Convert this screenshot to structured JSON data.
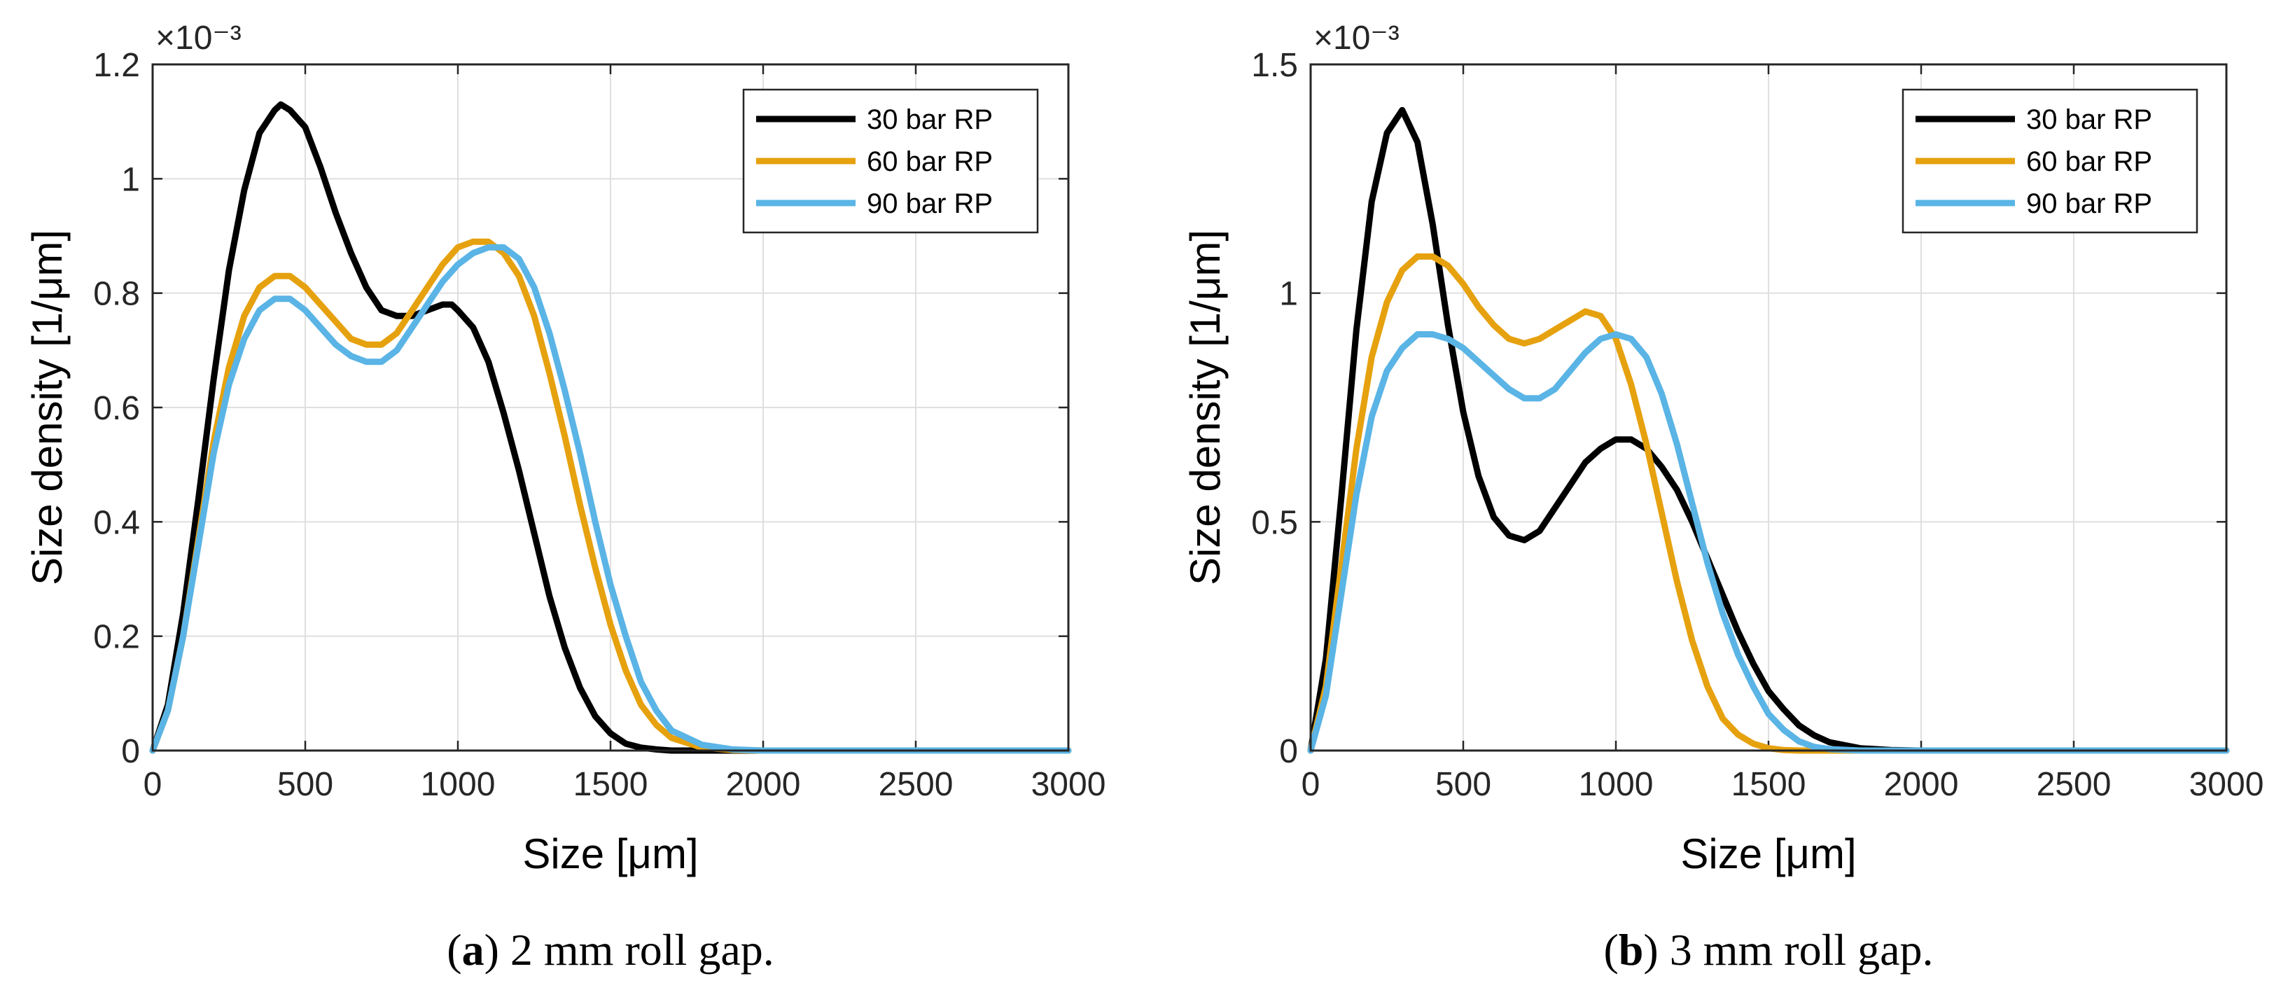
{
  "chart_data": [
    {
      "type": "line",
      "caption_letter": "a",
      "caption_prefix": "(",
      "caption_suffix": ") 2 mm roll gap.",
      "xlabel": "Size [μm]",
      "ylabel": "Size density [1/μm]",
      "exponent_label": "×10⁻³",
      "xlim": [
        0,
        3000
      ],
      "ylim": [
        0,
        1.2
      ],
      "xticks": [
        0,
        500,
        1000,
        1500,
        2000,
        2500,
        3000
      ],
      "xtick_labels": [
        "0",
        "500",
        "1000",
        "1500",
        "2000",
        "2500",
        "3000"
      ],
      "yticks": [
        0,
        0.2,
        0.4,
        0.6,
        0.8,
        1.0,
        1.2
      ],
      "ytick_labels": [
        "0",
        "0.2",
        "0.4",
        "0.6",
        "0.8",
        "1",
        "1.2"
      ],
      "grid": true,
      "legend_position": "top-right",
      "series": [
        {
          "name": "30 bar RP",
          "color": "#000000",
          "x": [
            0,
            50,
            100,
            150,
            200,
            250,
            300,
            350,
            400,
            420,
            450,
            500,
            550,
            600,
            650,
            700,
            750,
            800,
            850,
            900,
            950,
            980,
            1000,
            1050,
            1100,
            1150,
            1200,
            1250,
            1300,
            1350,
            1400,
            1450,
            1500,
            1550,
            1600,
            1650,
            1700,
            1800,
            2000,
            2500,
            3000
          ],
          "y": [
            0,
            0.08,
            0.24,
            0.44,
            0.65,
            0.84,
            0.98,
            1.08,
            1.12,
            1.13,
            1.12,
            1.09,
            1.02,
            0.94,
            0.87,
            0.81,
            0.77,
            0.76,
            0.76,
            0.77,
            0.78,
            0.78,
            0.77,
            0.74,
            0.68,
            0.59,
            0.49,
            0.38,
            0.27,
            0.18,
            0.11,
            0.06,
            0.03,
            0.012,
            0.005,
            0.002,
            0.0,
            0.0,
            0.0,
            0.0,
            0.0
          ]
        },
        {
          "name": "60 bar RP",
          "color": "#E6A10E",
          "x": [
            0,
            50,
            100,
            150,
            200,
            250,
            300,
            350,
            400,
            450,
            500,
            550,
            600,
            650,
            700,
            750,
            800,
            850,
            900,
            950,
            1000,
            1050,
            1100,
            1150,
            1200,
            1250,
            1300,
            1350,
            1400,
            1450,
            1500,
            1550,
            1600,
            1650,
            1700,
            1800,
            1900,
            2000,
            2500,
            3000
          ],
          "y": [
            0,
            0.07,
            0.2,
            0.37,
            0.54,
            0.67,
            0.76,
            0.81,
            0.83,
            0.83,
            0.81,
            0.78,
            0.75,
            0.72,
            0.71,
            0.71,
            0.73,
            0.77,
            0.81,
            0.85,
            0.88,
            0.89,
            0.89,
            0.87,
            0.83,
            0.76,
            0.66,
            0.55,
            0.43,
            0.32,
            0.22,
            0.14,
            0.08,
            0.045,
            0.022,
            0.005,
            0.001,
            0.0,
            0.0,
            0.0
          ]
        },
        {
          "name": "90 bar RP",
          "color": "#5AB4E5",
          "x": [
            0,
            50,
            100,
            150,
            200,
            250,
            300,
            350,
            400,
            450,
            500,
            550,
            600,
            650,
            700,
            750,
            800,
            850,
            900,
            950,
            1000,
            1050,
            1100,
            1150,
            1200,
            1250,
            1300,
            1350,
            1400,
            1450,
            1500,
            1550,
            1600,
            1650,
            1700,
            1800,
            1900,
            2000,
            2500,
            3000
          ],
          "y": [
            0,
            0.07,
            0.2,
            0.36,
            0.52,
            0.64,
            0.72,
            0.77,
            0.79,
            0.79,
            0.77,
            0.74,
            0.71,
            0.69,
            0.68,
            0.68,
            0.7,
            0.74,
            0.78,
            0.82,
            0.85,
            0.87,
            0.88,
            0.88,
            0.86,
            0.81,
            0.73,
            0.63,
            0.52,
            0.4,
            0.29,
            0.2,
            0.12,
            0.07,
            0.035,
            0.01,
            0.002,
            0.0,
            0.0,
            0.0
          ]
        }
      ]
    },
    {
      "type": "line",
      "caption_letter": "b",
      "caption_prefix": "(",
      "caption_suffix": ") 3 mm roll gap.",
      "xlabel": "Size [μm]",
      "ylabel": "Size density [1/μm]",
      "exponent_label": "×10⁻³",
      "xlim": [
        0,
        3000
      ],
      "ylim": [
        0,
        1.5
      ],
      "xticks": [
        0,
        500,
        1000,
        1500,
        2000,
        2500,
        3000
      ],
      "xtick_labels": [
        "0",
        "500",
        "1000",
        "1500",
        "2000",
        "2500",
        "3000"
      ],
      "yticks": [
        0,
        0.5,
        1.0,
        1.5
      ],
      "ytick_labels": [
        "0",
        "0.5",
        "1",
        "1.5"
      ],
      "grid": true,
      "legend_position": "top-right",
      "series": [
        {
          "name": "30 bar RP",
          "color": "#000000",
          "x": [
            0,
            50,
            100,
            150,
            200,
            250,
            300,
            350,
            400,
            450,
            500,
            550,
            600,
            650,
            700,
            750,
            800,
            850,
            900,
            950,
            1000,
            1050,
            1100,
            1150,
            1200,
            1250,
            1300,
            1350,
            1400,
            1450,
            1500,
            1550,
            1600,
            1650,
            1700,
            1800,
            1900,
            2000,
            2500,
            3000
          ],
          "y": [
            0,
            0.2,
            0.55,
            0.92,
            1.2,
            1.35,
            1.4,
            1.33,
            1.15,
            0.93,
            0.74,
            0.6,
            0.51,
            0.47,
            0.46,
            0.48,
            0.53,
            0.58,
            0.63,
            0.66,
            0.68,
            0.68,
            0.66,
            0.62,
            0.57,
            0.5,
            0.42,
            0.34,
            0.26,
            0.19,
            0.13,
            0.09,
            0.055,
            0.033,
            0.018,
            0.005,
            0.001,
            0.0,
            0.0,
            0.0
          ]
        },
        {
          "name": "60 bar RP",
          "color": "#E6A10E",
          "x": [
            0,
            50,
            100,
            150,
            200,
            250,
            300,
            350,
            400,
            450,
            500,
            550,
            600,
            650,
            700,
            750,
            800,
            850,
            900,
            950,
            1000,
            1050,
            1100,
            1150,
            1200,
            1250,
            1300,
            1350,
            1400,
            1450,
            1500,
            1550,
            1600,
            1650,
            1700,
            1800,
            2000,
            2500,
            3000
          ],
          "y": [
            0,
            0.14,
            0.4,
            0.66,
            0.86,
            0.98,
            1.05,
            1.08,
            1.08,
            1.06,
            1.02,
            0.97,
            0.93,
            0.9,
            0.89,
            0.9,
            0.92,
            0.94,
            0.96,
            0.95,
            0.9,
            0.8,
            0.67,
            0.52,
            0.37,
            0.24,
            0.14,
            0.07,
            0.035,
            0.015,
            0.005,
            0.001,
            0.0,
            0.0,
            0.0,
            0.0,
            0.0,
            0.0,
            0.0
          ]
        },
        {
          "name": "90 bar RP",
          "color": "#5AB4E5",
          "x": [
            0,
            50,
            100,
            150,
            200,
            250,
            300,
            350,
            400,
            450,
            500,
            550,
            600,
            650,
            700,
            750,
            800,
            850,
            900,
            950,
            1000,
            1050,
            1100,
            1150,
            1200,
            1250,
            1300,
            1350,
            1400,
            1450,
            1500,
            1550,
            1600,
            1650,
            1700,
            1800,
            1900,
            2000,
            2500,
            3000
          ],
          "y": [
            0,
            0.12,
            0.34,
            0.56,
            0.73,
            0.83,
            0.88,
            0.91,
            0.91,
            0.9,
            0.88,
            0.85,
            0.82,
            0.79,
            0.77,
            0.77,
            0.79,
            0.83,
            0.87,
            0.9,
            0.91,
            0.9,
            0.86,
            0.78,
            0.67,
            0.54,
            0.41,
            0.3,
            0.21,
            0.14,
            0.08,
            0.045,
            0.02,
            0.008,
            0.003,
            0.0,
            0.0,
            0.0,
            0.0,
            0.0
          ]
        }
      ]
    }
  ]
}
